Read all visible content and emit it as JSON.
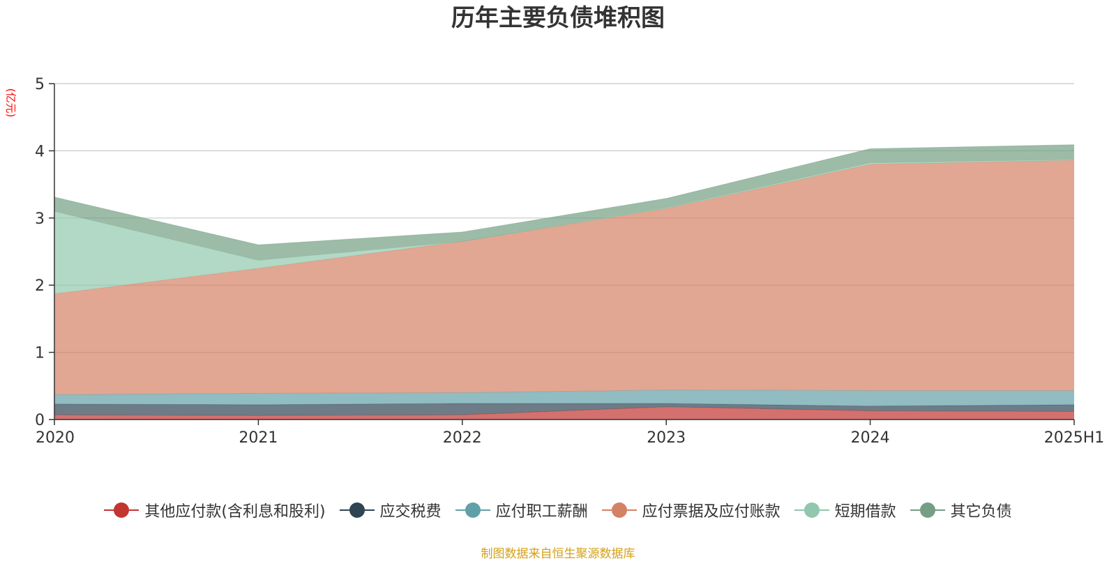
{
  "chart_data": {
    "type": "area",
    "stacked": true,
    "title": "历年主要负债堆积图",
    "unit_label": "(亿元)",
    "categories": [
      "2020",
      "2021",
      "2022",
      "2023",
      "2024",
      "2025H1"
    ],
    "ylim": [
      0,
      5
    ],
    "yticks": [
      0,
      1,
      2,
      3,
      4,
      5
    ],
    "grid": true,
    "legend_position": "bottom",
    "series": [
      {
        "name": "其他应付款(含利息和股利)",
        "color": "#c23531",
        "values": [
          0.07,
          0.06,
          0.07,
          0.19,
          0.13,
          0.12
        ]
      },
      {
        "name": "应交税费",
        "color": "#2f4554",
        "values": [
          0.16,
          0.16,
          0.17,
          0.05,
          0.07,
          0.1
        ]
      },
      {
        "name": "应付职工薪酬",
        "color": "#61a0a8",
        "values": [
          0.14,
          0.17,
          0.16,
          0.2,
          0.23,
          0.21
        ]
      },
      {
        "name": "应付票据及应付账款",
        "color": "#d48265",
        "values": [
          1.5,
          1.86,
          2.25,
          2.7,
          3.37,
          3.43
        ]
      },
      {
        "name": "短期借款",
        "color": "#91c7ae",
        "values": [
          1.23,
          0.12,
          0.0,
          0.01,
          0.02,
          0.01
        ]
      },
      {
        "name": "其它负债",
        "color": "#749f83",
        "values": [
          0.21,
          0.23,
          0.14,
          0.14,
          0.21,
          0.22
        ]
      }
    ],
    "source_note": "制图数据来自恒生聚源数据库"
  }
}
